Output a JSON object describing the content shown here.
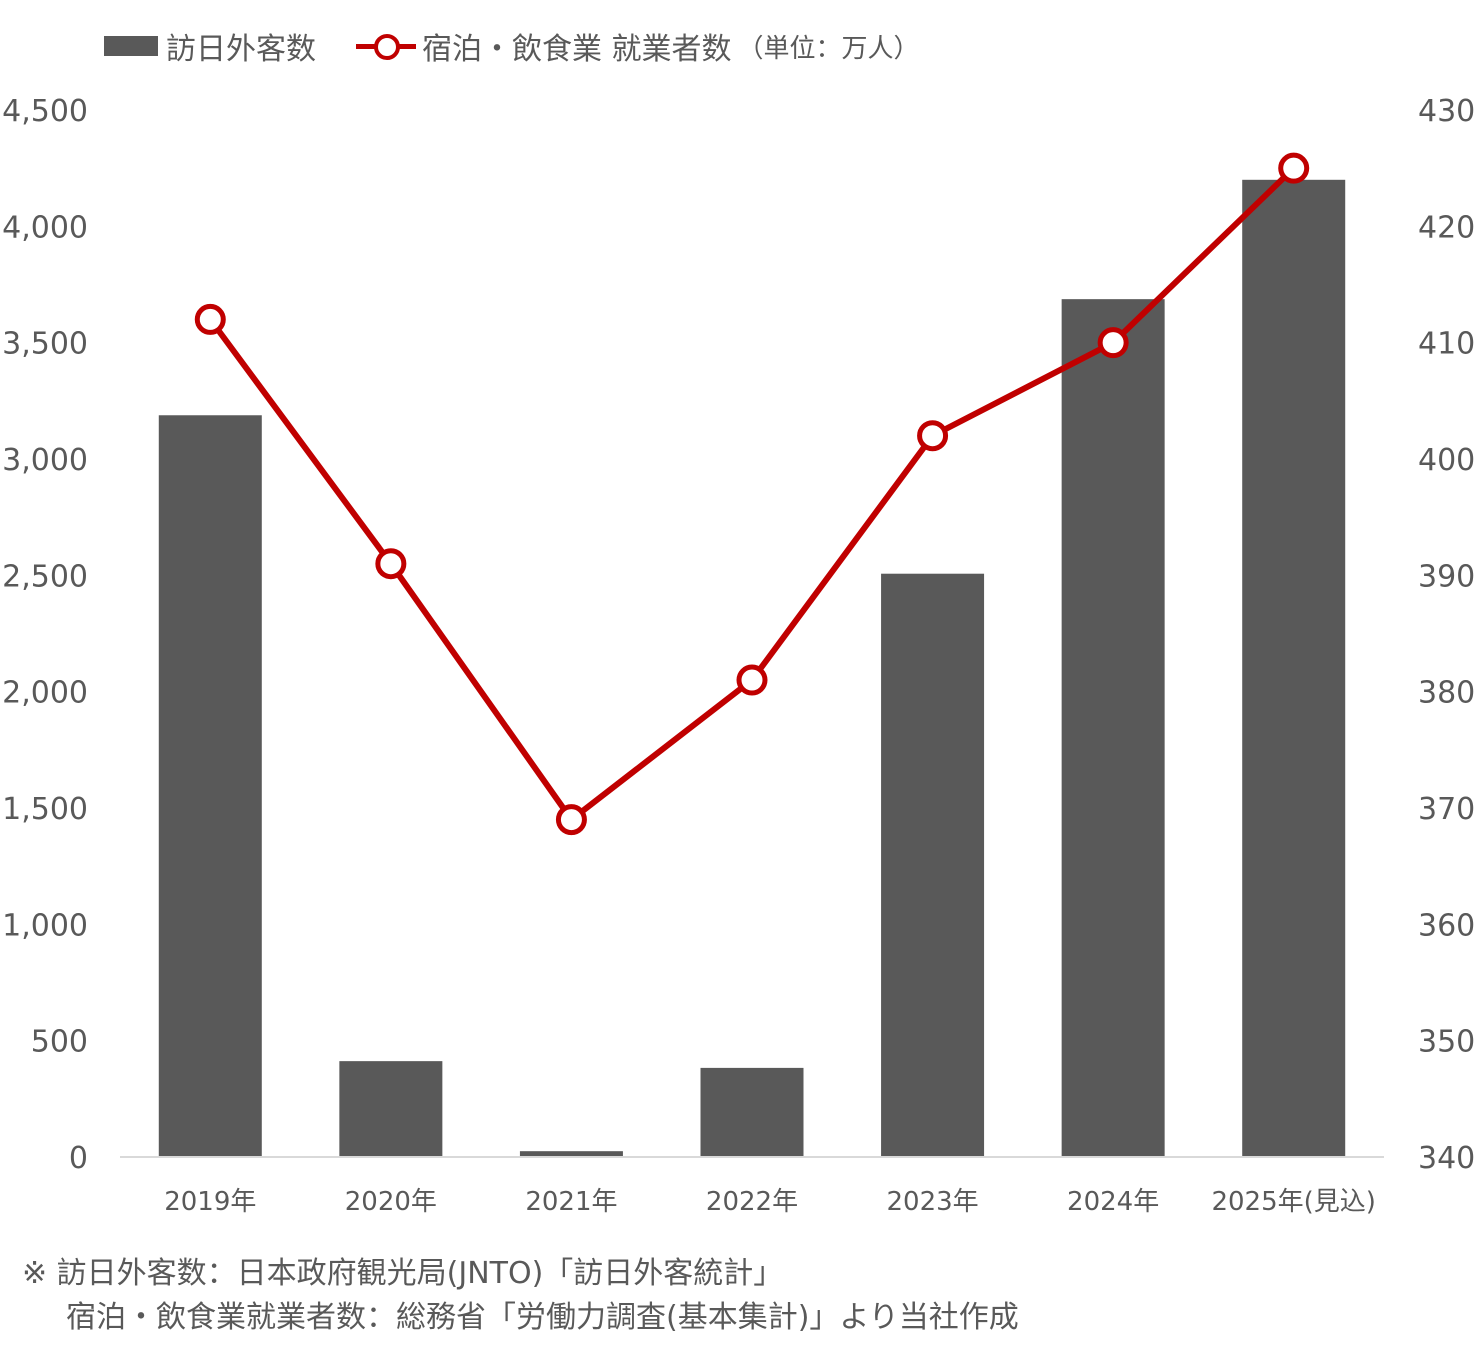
{
  "legend": {
    "bar_label": "訪日外客数",
    "line_label": "宿泊・飲食業 就業者数",
    "unit": "（単位：万人）"
  },
  "notes": {
    "line1": "※ 訪日外客数：日本政府観光局(JNTO)「訪日外客統計」",
    "line2": "宿泊・飲食業就業者数：総務省「労働力調査(基本集計)」より当社作成"
  },
  "chart_data": {
    "type": "bar",
    "categories": [
      "2019年",
      "2020年",
      "2021年",
      "2022年",
      "2023年",
      "2024年",
      "2025年(見込)"
    ],
    "series": [
      {
        "name": "訪日外客数",
        "type": "bar",
        "axis": "left",
        "values": [
          3188,
          412,
          25,
          383,
          2507,
          3687,
          4200
        ]
      },
      {
        "name": "宿泊・飲食業 就業者数",
        "type": "line",
        "axis": "right",
        "values": [
          412,
          391,
          369,
          381,
          402,
          410,
          425
        ]
      }
    ],
    "left_axis": {
      "min": 0,
      "max": 4500,
      "step": 500,
      "tick_labels": [
        "0",
        "500",
        "1,000",
        "1,500",
        "2,000",
        "2,500",
        "3,000",
        "3,500",
        "4,000",
        "4,500"
      ]
    },
    "right_axis": {
      "min": 340,
      "max": 430,
      "step": 10,
      "tick_labels": [
        "340",
        "350",
        "360",
        "370",
        "380",
        "390",
        "400",
        "410",
        "420",
        "430"
      ]
    },
    "colors": {
      "bar": "#595959",
      "line": "#C00000",
      "text": "#595959",
      "axis": "#D9D9D9"
    },
    "grid": false,
    "legend_position": "top-left"
  }
}
